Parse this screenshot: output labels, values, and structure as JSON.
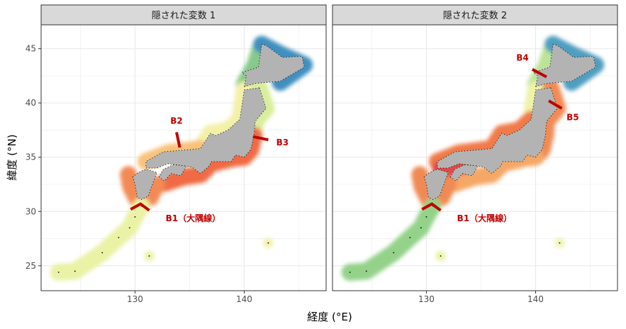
{
  "panels": [
    {
      "strip": "隠された変数 1",
      "boundaries": [
        "B1（大隅線）",
        "B2",
        "B3"
      ]
    },
    {
      "strip": "隠された変数 2",
      "boundaries": [
        "B1（大隅線）",
        "B4",
        "B5"
      ]
    }
  ],
  "x_axis": {
    "label": "経度 (°E)",
    "ticks": [
      "130",
      "140"
    ]
  },
  "y_axis": {
    "label": "緯度 (°N)",
    "ticks": [
      "25",
      "30",
      "35",
      "40",
      "45"
    ]
  },
  "colors": {
    "land": "#b3b3b3",
    "boundary": "#c00000",
    "strip_bg": "#d9d9d9",
    "grid": "#ebebeb",
    "palette_low": "#d7191c",
    "palette_mid": "#ffffbf",
    "palette_high": "#2b83ba"
  }
}
